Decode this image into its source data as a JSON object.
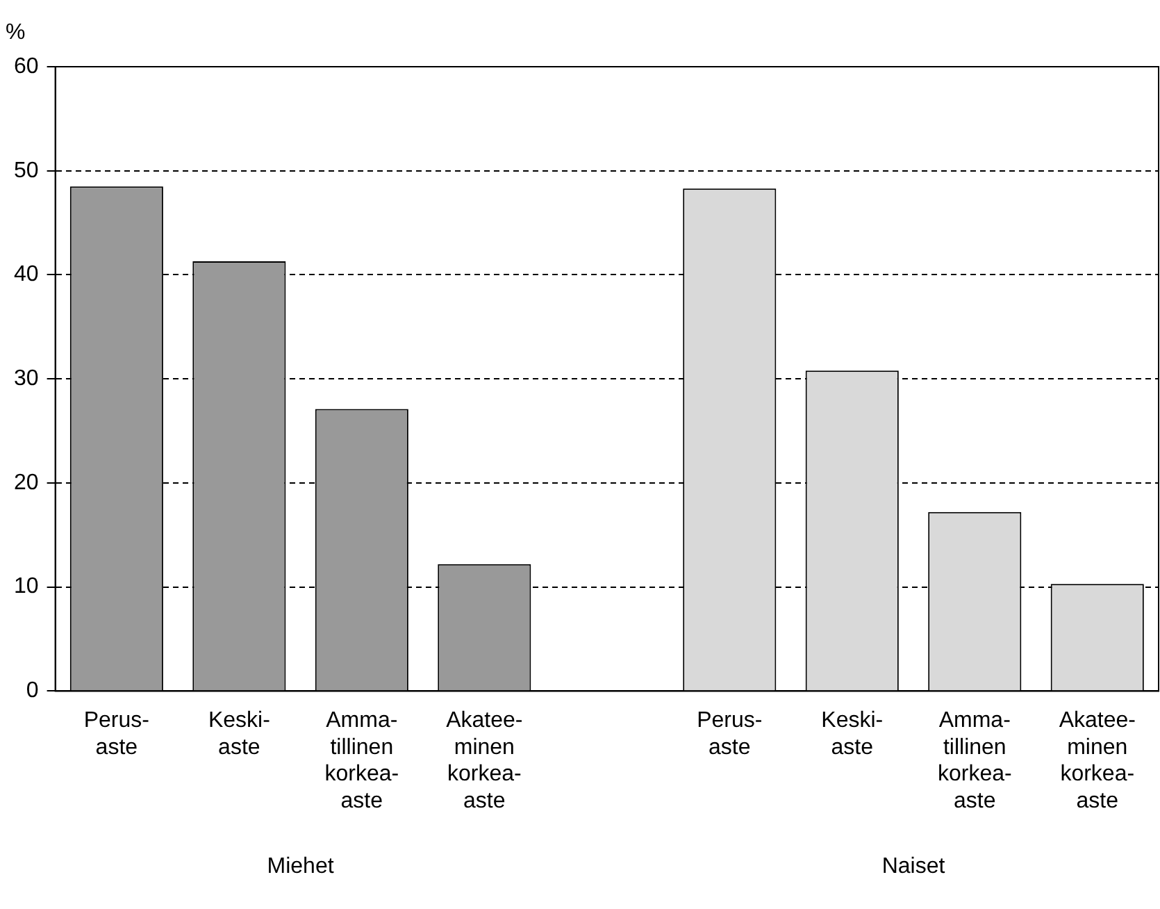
{
  "chart_data": {
    "type": "bar",
    "ylabel": "%",
    "categories": [
      "Perus-\naste",
      "Keski-\naste",
      "Amma-\ntillinen\nkorkea-\naste",
      "Akatee-\nminen\nkorkea-\naste",
      null,
      "Perus-\naste",
      "Keski-\naste",
      "Amma-\ntillinen\nkorkea-\naste",
      "Akatee-\nminen\nkorkea-\naste"
    ],
    "series": [
      {
        "colors": [
          "#999999",
          "#999999",
          "#999999",
          "#999999",
          "#999999",
          "#d9d9d9",
          "#d9d9d9",
          "#d9d9d9",
          "#d9d9d9"
        ],
        "values": [
          48.5,
          41.3,
          27.1,
          12.2,
          null,
          48.3,
          30.8,
          17.2,
          10.3
        ]
      }
    ],
    "annotations": [
      "Miehet",
      "Naiset"
    ],
    "ylim": [
      0,
      60
    ],
    "yticks": [
      0,
      10,
      20,
      30,
      40,
      50,
      60
    ],
    "grid": "y",
    "legend": false
  }
}
